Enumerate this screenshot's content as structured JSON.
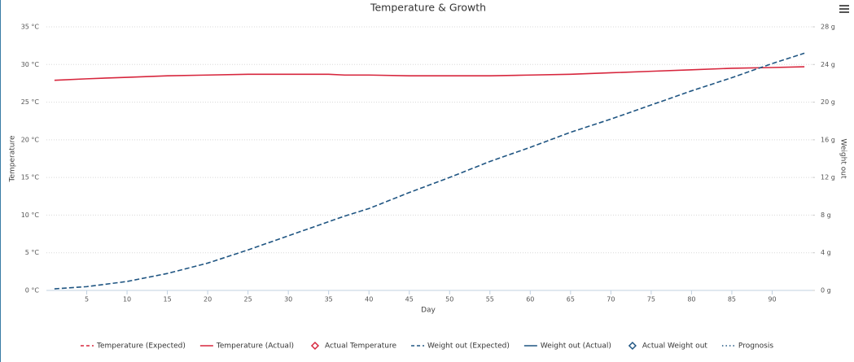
{
  "chart_data": {
    "type": "line",
    "title": "Temperature & Growth",
    "x_label": "Day",
    "y_label": "Temperature",
    "y2_label": "Weight out",
    "x": [
      1,
      5,
      10,
      15,
      20,
      25,
      30,
      35,
      37,
      40,
      45,
      50,
      55,
      60,
      65,
      70,
      75,
      80,
      85,
      90,
      94
    ],
    "xlim": [
      0,
      95
    ],
    "xticks": [
      5,
      10,
      15,
      20,
      25,
      30,
      35,
      40,
      45,
      50,
      55,
      60,
      65,
      70,
      75,
      80,
      85,
      90
    ],
    "ylim": [
      0,
      35
    ],
    "yticks": [
      {
        "value": 0,
        "label": "0 °C"
      },
      {
        "value": 5,
        "label": "5 °C"
      },
      {
        "value": 10,
        "label": "10 °C"
      },
      {
        "value": 15,
        "label": "15 °C"
      },
      {
        "value": 20,
        "label": "20 °C"
      },
      {
        "value": 25,
        "label": "25 °C"
      },
      {
        "value": 30,
        "label": "30 °C"
      },
      {
        "value": 35,
        "label": "35 °C"
      }
    ],
    "y2lim": [
      0,
      28
    ],
    "y2ticks": [
      {
        "value": 0,
        "label": "0 g"
      },
      {
        "value": 4,
        "label": "4 g"
      },
      {
        "value": 8,
        "label": "8 g"
      },
      {
        "value": 12,
        "label": "12 g"
      },
      {
        "value": 16,
        "label": "16 g"
      },
      {
        "value": 20,
        "label": "20 g"
      },
      {
        "value": 24,
        "label": "24 g"
      },
      {
        "value": 28,
        "label": "28 g"
      }
    ],
    "grid": true,
    "series": [
      {
        "name": "Temperature (Expected)",
        "color": "#d7263d",
        "style": "dashed",
        "values": [
          null,
          null,
          null,
          null,
          null,
          null,
          null,
          null,
          null,
          null,
          null,
          null,
          null,
          null,
          null,
          null,
          null,
          null,
          null,
          null,
          null
        ]
      },
      {
        "name": "Temperature (Actual)",
        "color": "#d7263d",
        "style": "solid",
        "values": [
          27.9,
          28.1,
          28.3,
          28.5,
          28.6,
          28.7,
          28.7,
          28.7,
          28.6,
          28.6,
          28.5,
          28.5,
          28.5,
          28.6,
          28.7,
          28.9,
          29.1,
          29.3,
          29.5,
          29.6,
          29.7
        ]
      },
      {
        "name": "Actual Temperature",
        "color": "#d7263d",
        "style": "diamond",
        "values": [
          null,
          null,
          null,
          null,
          null,
          null,
          null,
          null,
          null,
          null,
          null,
          null,
          null,
          null,
          null,
          null,
          null,
          null,
          null,
          null,
          null
        ]
      },
      {
        "name": "Weight out (Expected)",
        "color": "#1f5582",
        "style": "dashed",
        "axis": "y2",
        "values": [
          0.17,
          0.4,
          0.95,
          1.8,
          2.9,
          4.3,
          5.8,
          7.3,
          7.9,
          8.7,
          10.4,
          12.0,
          13.7,
          15.2,
          16.8,
          18.2,
          19.7,
          21.2,
          22.6,
          24.1,
          25.2
        ]
      },
      {
        "name": "Weight out (Actual)",
        "color": "#1f5582",
        "style": "solid",
        "axis": "y2",
        "values": [
          null,
          null,
          null,
          null,
          null,
          null,
          null,
          null,
          null,
          null,
          null,
          null,
          null,
          null,
          null,
          null,
          null,
          null,
          null,
          null,
          null
        ]
      },
      {
        "name": "Actual Weight out",
        "color": "#1f5582",
        "style": "diamond",
        "axis": "y2",
        "values": [
          null,
          null,
          null,
          null,
          null,
          null,
          null,
          null,
          null,
          null,
          null,
          null,
          null,
          null,
          null,
          null,
          null,
          null,
          null,
          null,
          null
        ]
      },
      {
        "name": "Prognosis",
        "color": "#1f5582",
        "style": "dotted",
        "axis": "y2",
        "values": [
          null,
          null,
          null,
          null,
          null,
          null,
          null,
          null,
          null,
          null,
          null,
          null,
          null,
          null,
          null,
          null,
          null,
          null,
          null,
          null,
          null
        ]
      }
    ]
  }
}
